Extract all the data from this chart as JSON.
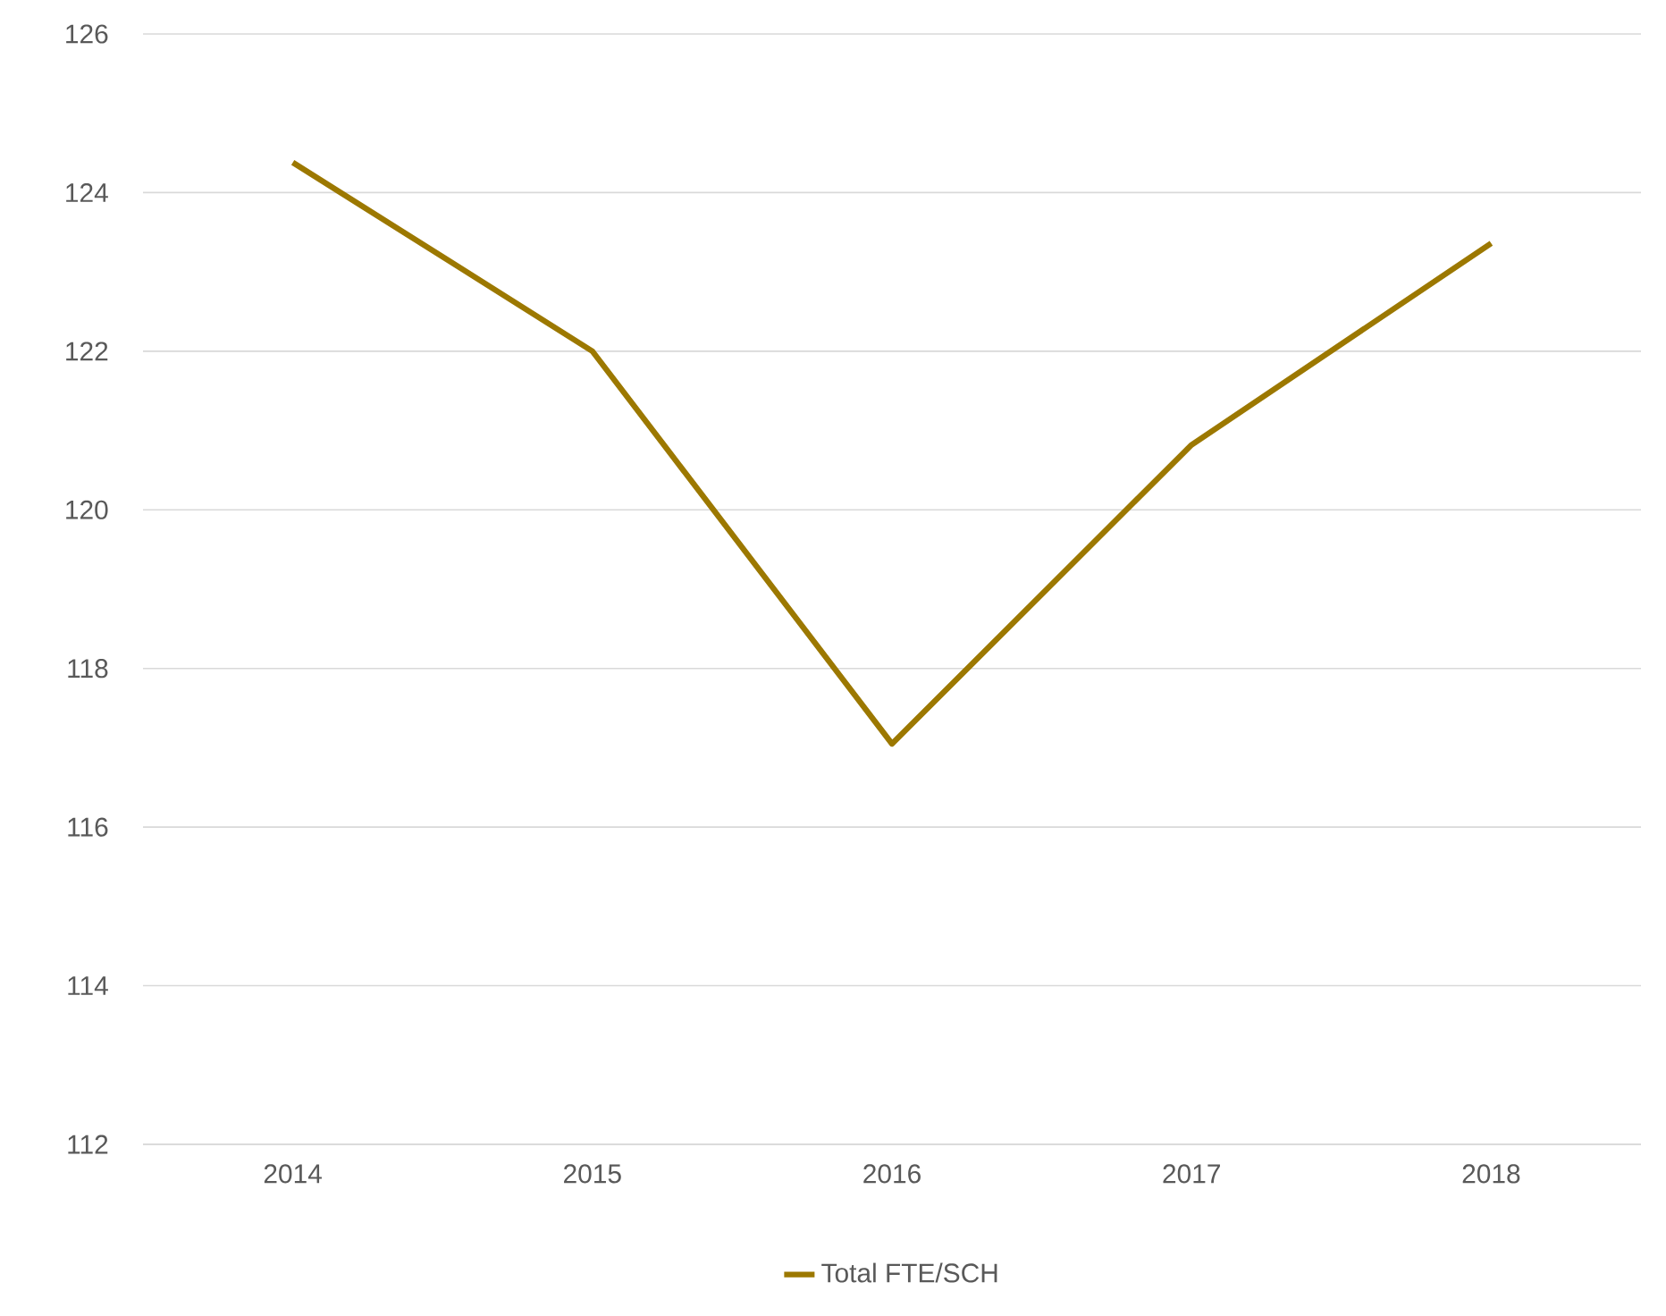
{
  "chart_data": {
    "type": "line",
    "categories": [
      "2014",
      "2015",
      "2016",
      "2017",
      "2018"
    ],
    "series": [
      {
        "name": "Total FTE/SCH",
        "color": "#9c7800",
        "values": [
          124.38,
          122.0,
          117.05,
          120.82,
          123.36
        ]
      }
    ],
    "ylim": [
      112,
      126
    ],
    "yticks": [
      112,
      114,
      116,
      118,
      120,
      122,
      124,
      126
    ],
    "grid": "y",
    "legend": "bottom"
  }
}
